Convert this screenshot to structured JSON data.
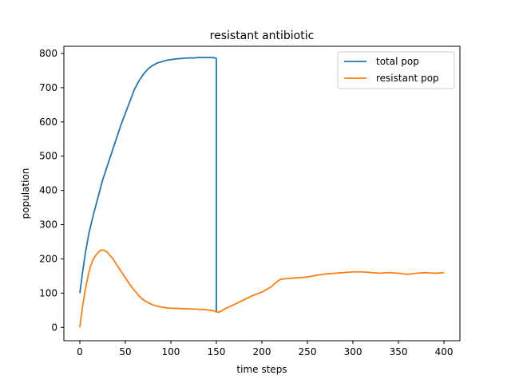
{
  "chart_data": {
    "type": "line",
    "title": "resistant antibiotic",
    "xlabel": "time steps",
    "ylabel": "population",
    "xlim": [
      -17.5,
      417.5
    ],
    "ylim": [
      -39,
      821
    ],
    "xticks": [
      0,
      50,
      100,
      150,
      200,
      250,
      300,
      350,
      400
    ],
    "yticks": [
      0,
      100,
      200,
      300,
      400,
      500,
      600,
      700,
      800
    ],
    "grid": false,
    "legend_position": "top-right",
    "series": [
      {
        "name": "total pop",
        "color": "#1f77b4",
        "points": [
          [
            0,
            100
          ],
          [
            3,
            160
          ],
          [
            6,
            215
          ],
          [
            10,
            275
          ],
          [
            15,
            330
          ],
          [
            20,
            380
          ],
          [
            25,
            430
          ],
          [
            30,
            470
          ],
          [
            35,
            510
          ],
          [
            40,
            550
          ],
          [
            45,
            590
          ],
          [
            50,
            625
          ],
          [
            55,
            660
          ],
          [
            60,
            695
          ],
          [
            65,
            720
          ],
          [
            70,
            740
          ],
          [
            75,
            755
          ],
          [
            80,
            765
          ],
          [
            85,
            772
          ],
          [
            90,
            776
          ],
          [
            95,
            780
          ],
          [
            100,
            782
          ],
          [
            105,
            784
          ],
          [
            110,
            785
          ],
          [
            115,
            786
          ],
          [
            120,
            787
          ],
          [
            125,
            787
          ],
          [
            130,
            788
          ],
          [
            135,
            788
          ],
          [
            140,
            788
          ],
          [
            145,
            788
          ],
          [
            149,
            787
          ],
          [
            150,
            785
          ],
          [
            150,
            45
          ]
        ]
      },
      {
        "name": "resistant pop",
        "color": "#ff7f0e",
        "points": [
          [
            0,
            0
          ],
          [
            3,
            60
          ],
          [
            6,
            110
          ],
          [
            9,
            150
          ],
          [
            12,
            180
          ],
          [
            15,
            200
          ],
          [
            18,
            212
          ],
          [
            21,
            222
          ],
          [
            24,
            226
          ],
          [
            27,
            225
          ],
          [
            30,
            220
          ],
          [
            33,
            210
          ],
          [
            36,
            202
          ],
          [
            40,
            185
          ],
          [
            45,
            165
          ],
          [
            50,
            145
          ],
          [
            55,
            125
          ],
          [
            60,
            108
          ],
          [
            65,
            92
          ],
          [
            70,
            80
          ],
          [
            75,
            72
          ],
          [
            80,
            66
          ],
          [
            85,
            62
          ],
          [
            90,
            59
          ],
          [
            95,
            57
          ],
          [
            100,
            56
          ],
          [
            110,
            55
          ],
          [
            120,
            54
          ],
          [
            130,
            53
          ],
          [
            140,
            51
          ],
          [
            148,
            48
          ],
          [
            150,
            45
          ],
          [
            152,
            44
          ],
          [
            155,
            47
          ],
          [
            160,
            55
          ],
          [
            170,
            67
          ],
          [
            180,
            80
          ],
          [
            190,
            93
          ],
          [
            200,
            103
          ],
          [
            210,
            118
          ],
          [
            215,
            130
          ],
          [
            220,
            140
          ],
          [
            225,
            142
          ],
          [
            230,
            143
          ],
          [
            240,
            145
          ],
          [
            250,
            147
          ],
          [
            260,
            152
          ],
          [
            270,
            156
          ],
          [
            280,
            158
          ],
          [
            290,
            160
          ],
          [
            300,
            162
          ],
          [
            310,
            162
          ],
          [
            320,
            160
          ],
          [
            330,
            158
          ],
          [
            340,
            160
          ],
          [
            350,
            158
          ],
          [
            360,
            155
          ],
          [
            370,
            158
          ],
          [
            380,
            160
          ],
          [
            390,
            158
          ],
          [
            400,
            160
          ]
        ]
      }
    ]
  }
}
